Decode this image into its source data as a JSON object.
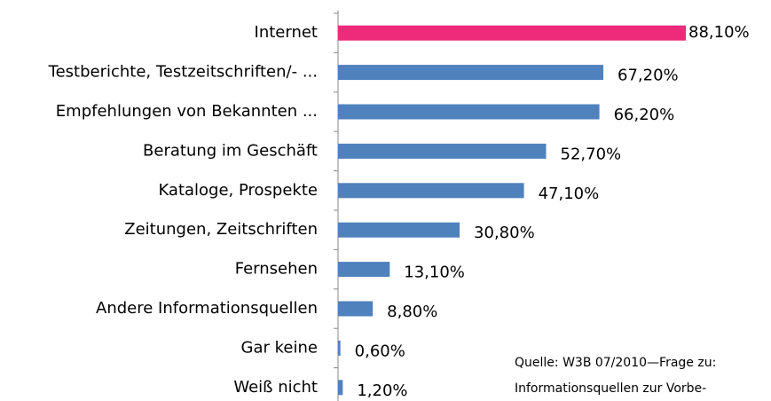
{
  "chart_data": {
    "type": "barh",
    "categories": [
      "Internet",
      "Testberichte, Testzeitschriften/- ...",
      "Empfehlungen von Bekannten ...",
      "Beratung im Geschäft",
      "Kataloge,  Prospekte",
      "Zeitungen, Zeitschriften",
      "Fernsehen",
      "Andere Informationsquellen",
      "Gar keine",
      "Weiß nicht"
    ],
    "values": [
      88.1,
      67.2,
      66.2,
      52.7,
      47.1,
      30.8,
      13.1,
      8.8,
      0.6,
      1.2
    ],
    "value_labels": [
      "88,10%",
      "67,20%",
      "66,20%",
      "52,70%",
      "47,10%",
      "30,80%",
      "13,10%",
      "8,80%",
      "0,60%",
      "1,20%"
    ],
    "colors": [
      "#ee2a7b",
      "#4f81bd",
      "#4f81bd",
      "#4f81bd",
      "#4f81bd",
      "#4f81bd",
      "#4f81bd",
      "#4f81bd",
      "#4f81bd",
      "#4f81bd"
    ],
    "xlim": [
      0,
      100
    ],
    "annotation": [
      "Quelle: W3B 07/2010—Frage zu:",
      "Informationsquellen zur Vorbe-"
    ]
  }
}
